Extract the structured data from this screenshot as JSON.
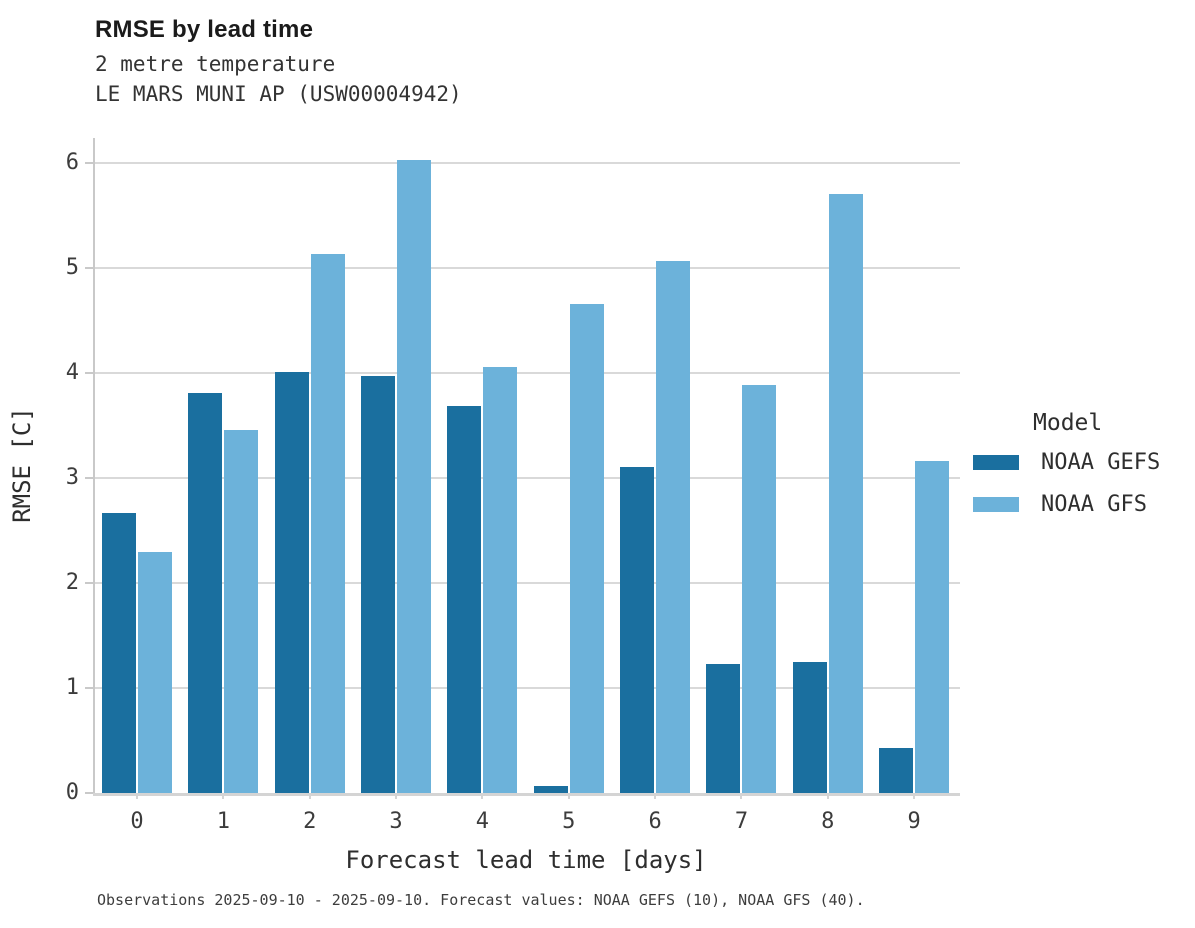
{
  "header": {
    "title": "RMSE by lead time",
    "subtitle_line1": "2 metre temperature",
    "subtitle_line2": "LE MARS MUNI AP (USW00004942)"
  },
  "legend": {
    "title": "Model"
  },
  "caption": "Observations 2025-09-10 - 2025-09-10. Forecast values: NOAA GEFS (10), NOAA GFS (40).",
  "chart_data": {
    "type": "bar",
    "title": "RMSE by lead time",
    "subtitle": [
      "2 metre temperature",
      "LE MARS MUNI AP (USW00004942)"
    ],
    "xlabel": "Forecast lead time [days]",
    "ylabel": "RMSE [C]",
    "categories": [
      "0",
      "1",
      "2",
      "3",
      "4",
      "5",
      "6",
      "7",
      "8",
      "9"
    ],
    "series": [
      {
        "name": "NOAA GEFS",
        "color": "#1a6f9f",
        "values": [
          2.67,
          3.81,
          4.01,
          3.97,
          3.69,
          0.07,
          3.1,
          1.23,
          1.25,
          0.43
        ]
      },
      {
        "name": "NOAA GFS",
        "color": "#6cb2da",
        "values": [
          2.3,
          3.46,
          5.13,
          6.03,
          4.06,
          4.66,
          5.07,
          3.89,
          5.7,
          3.16
        ]
      }
    ],
    "ylim": [
      0,
      6.22
    ],
    "yticks": [
      0,
      1,
      2,
      3,
      4,
      5,
      6
    ],
    "grid": true,
    "legend_title": "Model",
    "legend_position": "right",
    "background": "#ffffff",
    "gridline_color": "#d9d9d9"
  }
}
